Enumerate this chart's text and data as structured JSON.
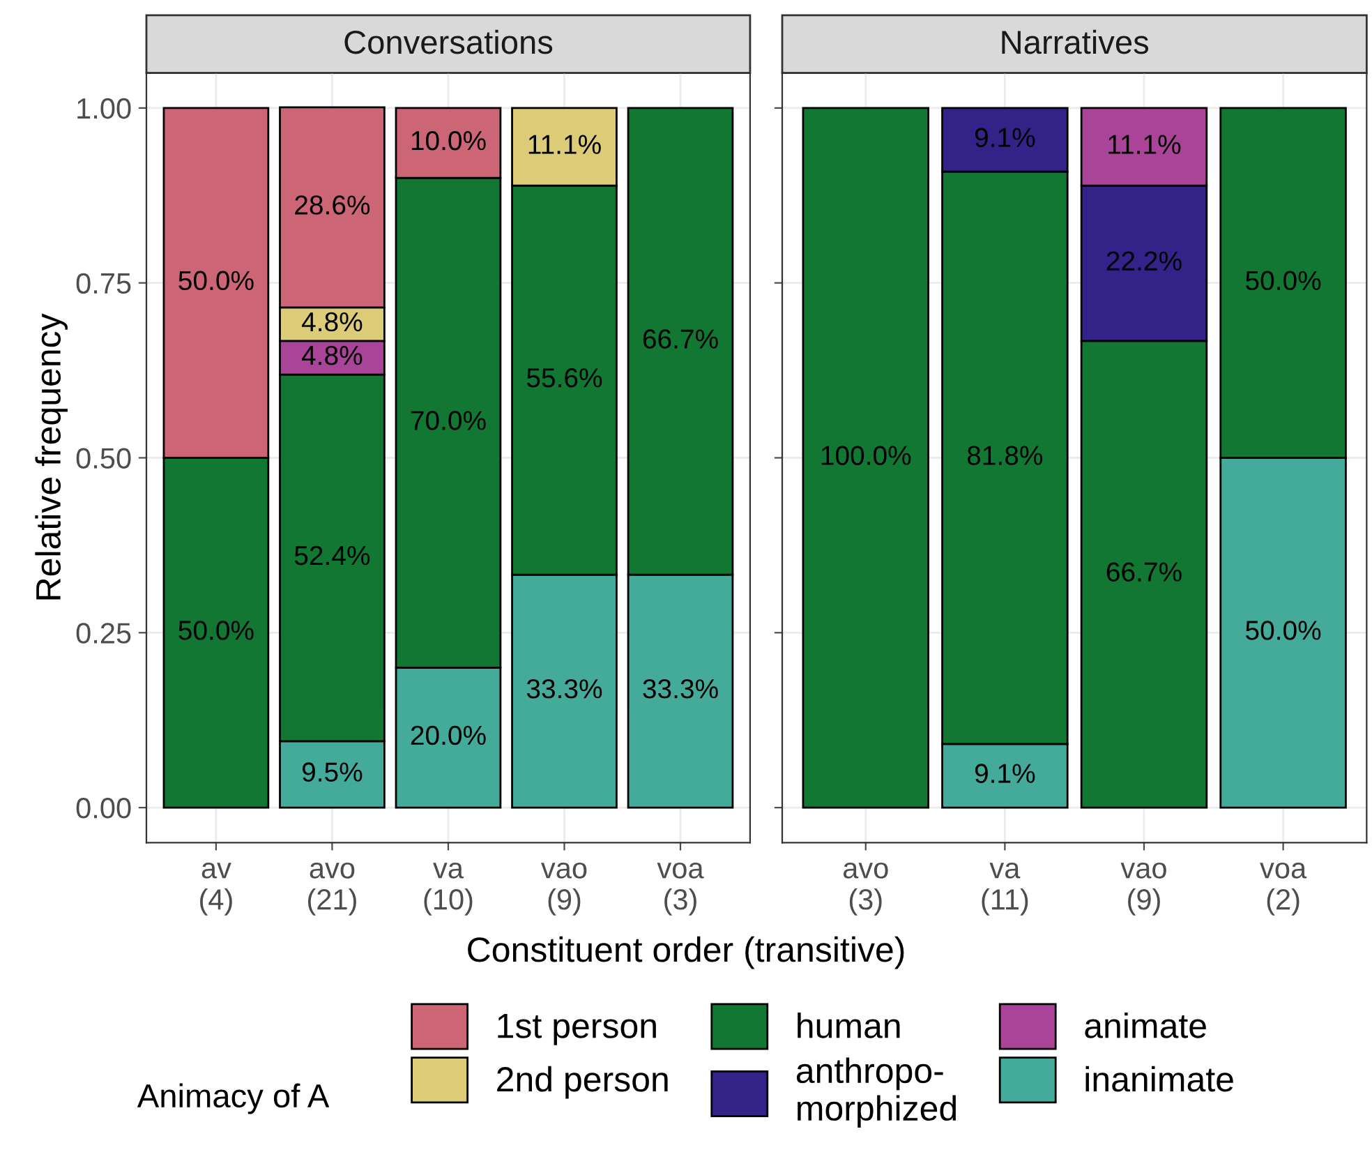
{
  "chart_data": [
    {
      "type": "bar",
      "stacked": true,
      "title": "Conversations",
      "xlabel": "Constituent order (transitive)",
      "ylabel": "Relative frequency",
      "legend_title": "Animacy of A",
      "legend": "bottom",
      "grid": true,
      "ylim": [
        -0.05,
        1.05
      ],
      "yticks": [
        {
          "value": 0,
          "label": "0.00"
        },
        {
          "value": 0.25,
          "label": "0.25"
        },
        {
          "value": 0.5,
          "label": "0.50"
        },
        {
          "value": 0.75,
          "label": "0.75"
        },
        {
          "value": 1,
          "label": "1.00"
        }
      ],
      "categories": [
        "av\n(4)",
        "avo\n(21)",
        "va\n(10)",
        "vao\n(9)",
        "voa\n(3)"
      ],
      "series": [
        {
          "name": "inanimate",
          "color": "#44aa99",
          "values": [
            null,
            0.095,
            0.2,
            0.333,
            0.333
          ],
          "value_labels": [
            null,
            "9.5%",
            "20.0%",
            "33.3%",
            "33.3%"
          ]
        },
        {
          "name": "human",
          "color": "#117733",
          "values": [
            0.5,
            0.524,
            0.7,
            0.556,
            0.667
          ],
          "value_labels": [
            "50.0%",
            "52.4%",
            "70.0%",
            "55.6%",
            "66.7%"
          ]
        },
        {
          "name": "anthropo-\nmorphized",
          "color": "#332288",
          "values": [
            null,
            null,
            null,
            null,
            null
          ],
          "value_labels": [
            null,
            null,
            null,
            null,
            null
          ]
        },
        {
          "name": "animate",
          "color": "#aa4499",
          "values": [
            null,
            0.048,
            null,
            null,
            null
          ],
          "value_labels": [
            null,
            "4.8%",
            null,
            null,
            null
          ]
        },
        {
          "name": "2nd person",
          "color": "#ddcc77",
          "values": [
            null,
            0.048,
            null,
            0.111,
            null
          ],
          "value_labels": [
            null,
            "4.8%",
            null,
            "11.1%",
            null
          ]
        },
        {
          "name": "1st person",
          "color": "#cc6677",
          "values": [
            0.5,
            0.286,
            0.1,
            null,
            null
          ],
          "value_labels": [
            "50.0%",
            "28.6%",
            "10.0%",
            null,
            null
          ]
        }
      ]
    },
    {
      "type": "bar",
      "stacked": true,
      "title": "Narratives",
      "grid": true,
      "tick_labels": "x",
      "ylim": [
        -0.05,
        1.05
      ],
      "categories": [
        "avo\n(3)",
        "va\n(11)",
        "vao\n(9)",
        "voa\n(2)"
      ],
      "series": [
        {
          "color": "#44aa99",
          "values": [
            null,
            0.091,
            null,
            0.5
          ],
          "value_labels": [
            null,
            "9.1%",
            null,
            "50.0%"
          ]
        },
        {
          "color": "#117733",
          "values": [
            1.0,
            0.818,
            0.667,
            0.5
          ],
          "value_labels": [
            "100.0%",
            "81.8%",
            "66.7%",
            "50.0%"
          ]
        },
        {
          "color": "#332288",
          "values": [
            null,
            0.091,
            0.222,
            null
          ],
          "value_labels": [
            null,
            "9.1%",
            "22.2%",
            null
          ]
        },
        {
          "color": "#aa4499",
          "values": [
            null,
            null,
            0.111,
            null
          ],
          "value_labels": [
            null,
            null,
            "11.1%",
            null
          ]
        }
      ]
    }
  ]
}
